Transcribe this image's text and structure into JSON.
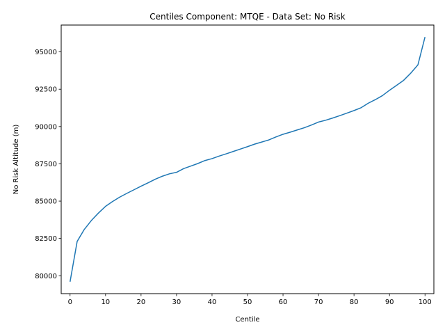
{
  "chart_data": {
    "type": "line",
    "title": "Centiles Component: MTQE - Data Set: No Risk",
    "xlabel": "Centile",
    "ylabel": "No Risk Altitude (m)",
    "xlim": [
      -2.5,
      102.5
    ],
    "ylim": [
      78800,
      96800
    ],
    "x_ticks": [
      0,
      10,
      20,
      30,
      40,
      50,
      60,
      70,
      80,
      90,
      100
    ],
    "y_ticks": [
      80000,
      82500,
      85000,
      87500,
      90000,
      92500,
      95000
    ],
    "y_tick_labels": [
      "80000",
      "82500",
      "85000",
      "87500",
      "90000",
      "92500",
      "95000"
    ],
    "grid": false,
    "legend": "none",
    "series": [
      {
        "color": "#1f77b4",
        "x": [
          0,
          2,
          4,
          6,
          8,
          10,
          12,
          14,
          16,
          18,
          20,
          22,
          24,
          26,
          28,
          30,
          32,
          34,
          36,
          38,
          40,
          42,
          44,
          46,
          48,
          50,
          52,
          54,
          56,
          58,
          60,
          62,
          64,
          66,
          68,
          70,
          72,
          74,
          76,
          78,
          80,
          82,
          84,
          86,
          88,
          90,
          92,
          94,
          96,
          98,
          100
        ],
        "y": [
          79600,
          82300,
          83100,
          83700,
          84200,
          84650,
          84980,
          85270,
          85520,
          85760,
          86000,
          86230,
          86470,
          86670,
          86830,
          86930,
          87180,
          87350,
          87520,
          87720,
          87850,
          88020,
          88170,
          88330,
          88490,
          88650,
          88820,
          88960,
          89100,
          89300,
          89480,
          89620,
          89770,
          89920,
          90100,
          90300,
          90420,
          90570,
          90730,
          90900,
          91070,
          91260,
          91560,
          91800,
          92070,
          92430,
          92760,
          93100,
          93580,
          94130,
          96000
        ]
      }
    ]
  }
}
